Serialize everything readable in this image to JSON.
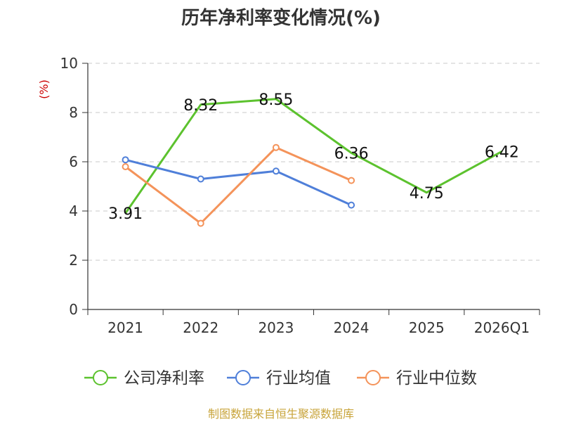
{
  "chart_data": {
    "type": "line",
    "title": "历年净利率变化情况(%)",
    "ylabel": "(%)",
    "ylim": [
      0,
      10
    ],
    "yticks": [
      0,
      2,
      4,
      6,
      8,
      10
    ],
    "categories": [
      "2021",
      "2022",
      "2023",
      "2024",
      "2025",
      "2026Q1"
    ],
    "grid": true,
    "legend_position": "bottom",
    "series": [
      {
        "name": "公司净利率",
        "color": "#5cc22e",
        "values": [
          3.91,
          8.32,
          8.55,
          6.36,
          4.75,
          6.42
        ],
        "labels": [
          "3.91",
          "8.32",
          "8.55",
          "6.36",
          "4.75",
          "6.42"
        ],
        "show_markers": false
      },
      {
        "name": "行业均值",
        "color": "#4f7fd9",
        "values": [
          6.08,
          5.3,
          5.62,
          4.24,
          null,
          null
        ],
        "labels": [],
        "show_markers": true
      },
      {
        "name": "行业中位数",
        "color": "#f4935a",
        "values": [
          5.8,
          3.5,
          6.58,
          5.24,
          null,
          null
        ],
        "labels": [],
        "show_markers": true
      }
    ]
  },
  "footer": {
    "source": "制图数据来自恒生聚源数据库"
  }
}
